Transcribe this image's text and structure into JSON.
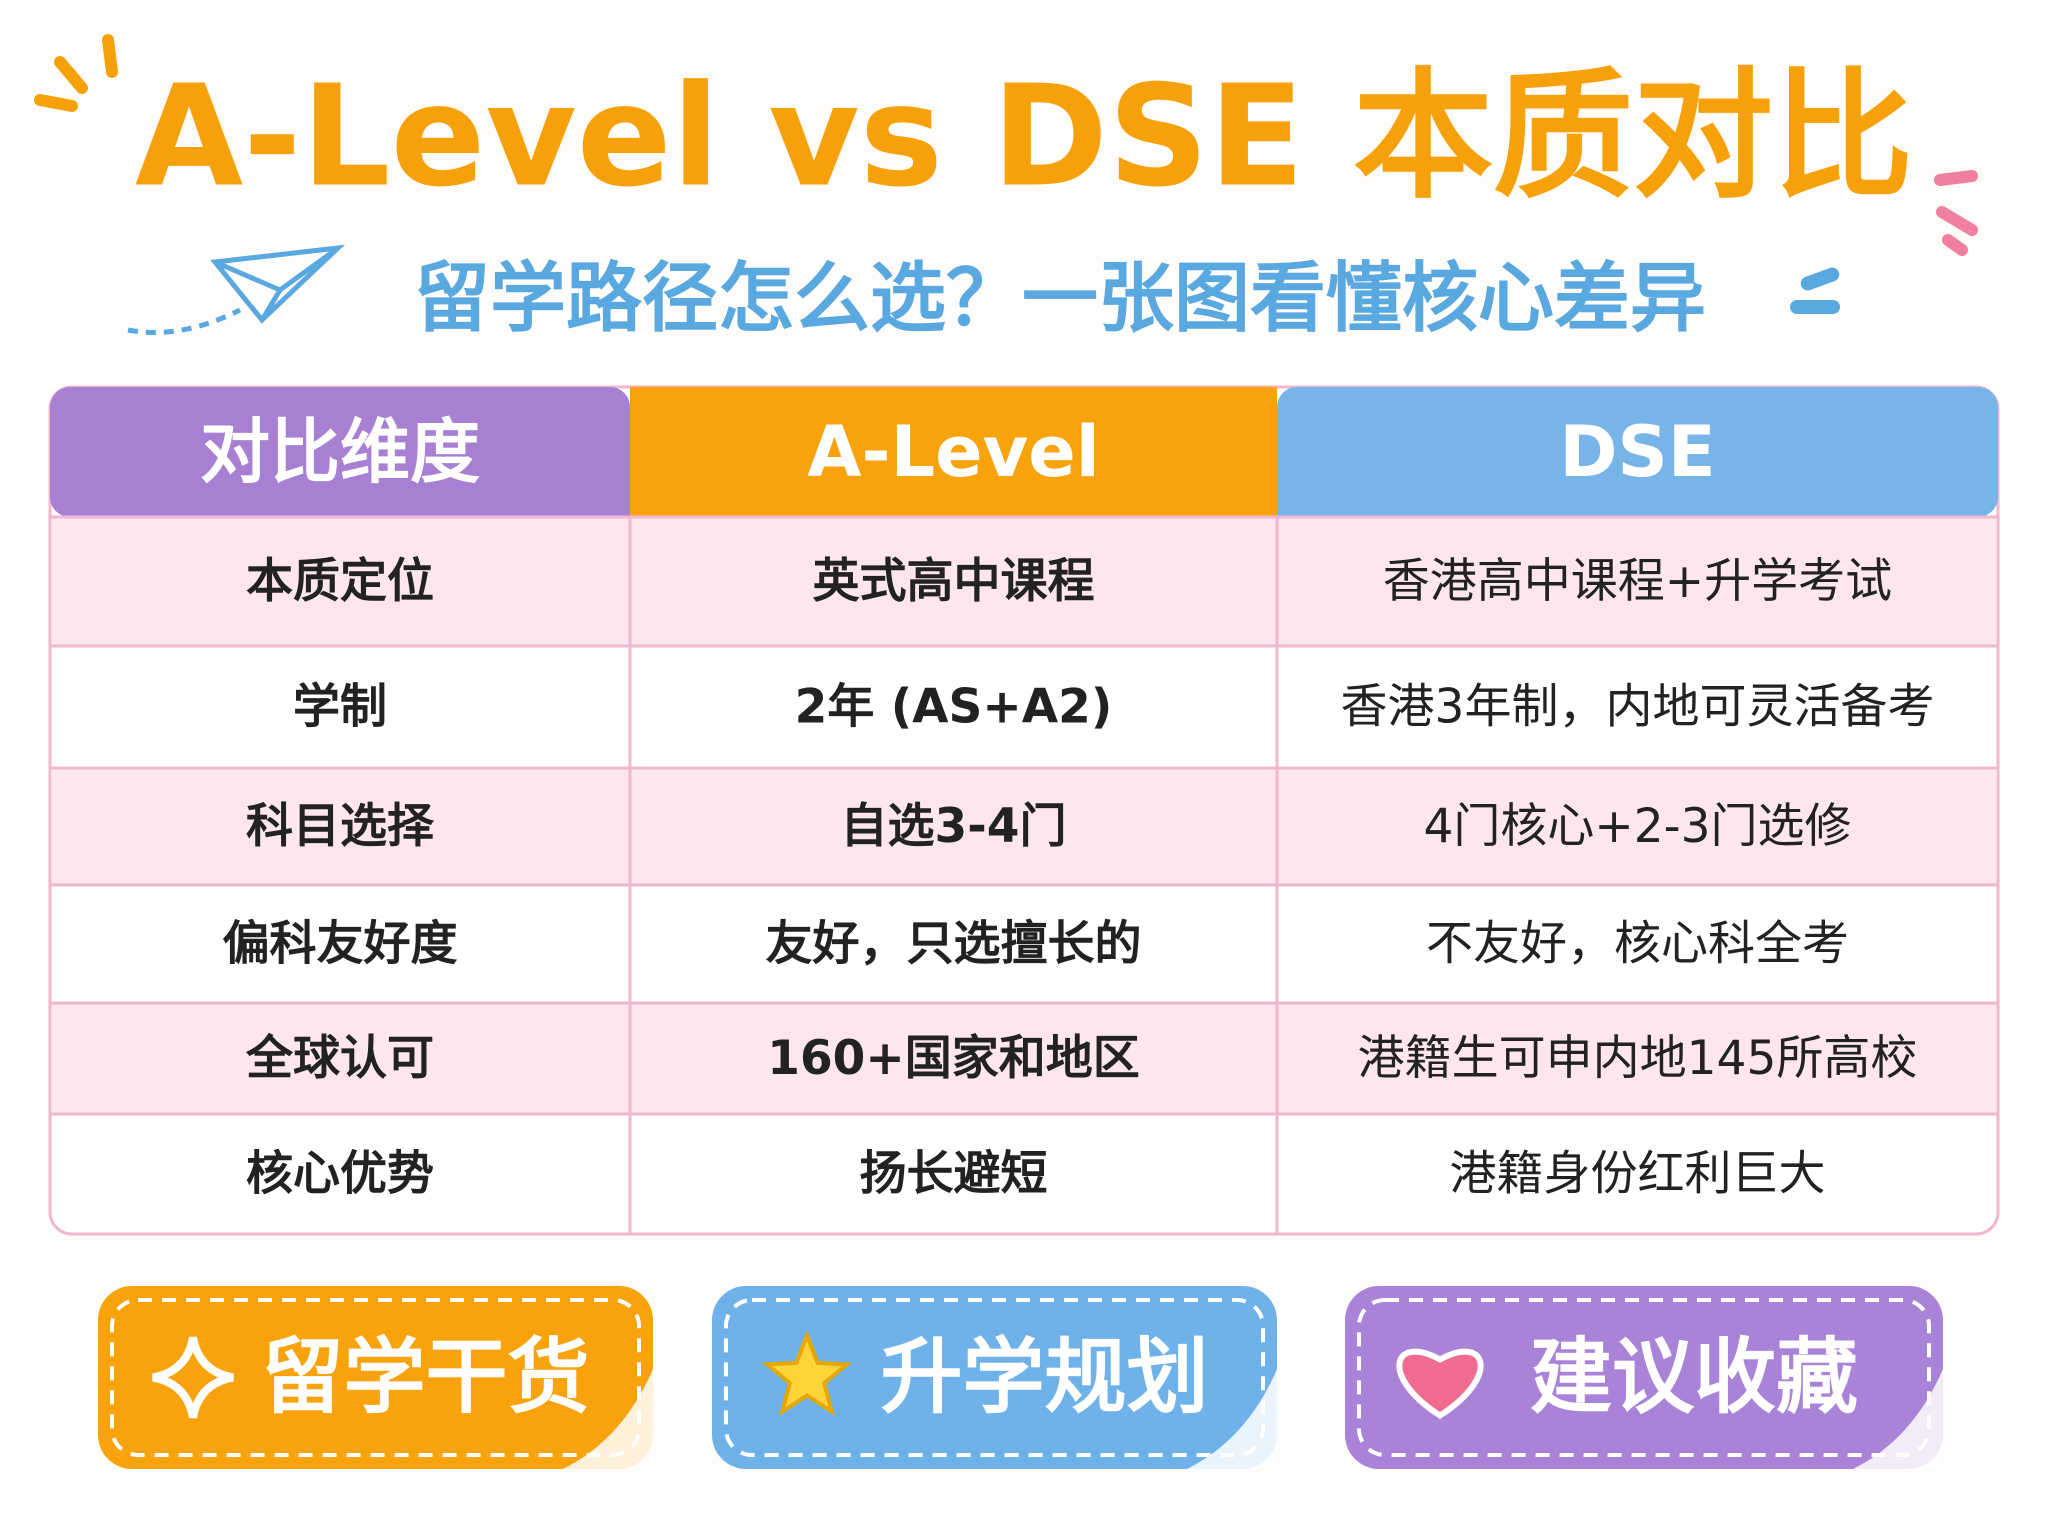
{
  "header": {
    "title": "A-Level vs DSE 本质对比",
    "subtitle": "留学路径怎么选？一张图看懂核心差异"
  },
  "table": {
    "columns": [
      "对比维度",
      "A-Level",
      "DSE"
    ],
    "rows": [
      [
        "本质定位",
        "英式高中课程",
        "香港高中课程+升学考试"
      ],
      [
        "学制",
        "2年 (AS+A2)",
        "香港3年制，内地可灵活备考"
      ],
      [
        "科目选择",
        "自选3-4门",
        "4门核心+2-3门选修"
      ],
      [
        "偏科友好度",
        "友好，只选擅长的",
        "不友好，核心科全考"
      ],
      [
        "全球认可",
        "160+国家和地区",
        "港籍生可申内地145所高校"
      ],
      [
        "核心优势",
        "扬长避短",
        "港籍身份红利巨大"
      ]
    ]
  },
  "tags": [
    "留学干货",
    "升学规划",
    "建议收藏"
  ]
}
